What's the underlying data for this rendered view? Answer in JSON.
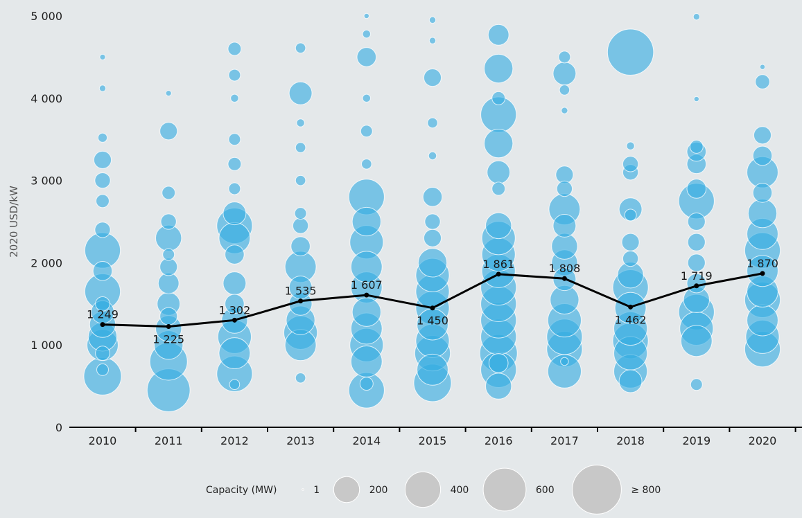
{
  "chart_data": {
    "type": "scatter",
    "subtype": "bubble-with-average-line",
    "ylabel": "2020 USD/kW",
    "xlabel": "",
    "ylim": [
      0,
      5000
    ],
    "yticks": [
      0,
      1000,
      2000,
      3000,
      4000,
      5000
    ],
    "ytick_labels": [
      "0",
      "1 000",
      "2 000",
      "3 000",
      "4 000",
      "5 000"
    ],
    "categories": [
      "2010",
      "2011",
      "2012",
      "2013",
      "2014",
      "2015",
      "2016",
      "2017",
      "2018",
      "2019",
      "2020"
    ],
    "average_series": {
      "values": [
        1249,
        1225,
        1302,
        1535,
        1607,
        1450,
        1861,
        1808,
        1462,
        1719,
        1870
      ],
      "labels": [
        "1 249",
        "1 225",
        "1 302",
        "1 535",
        "1 607",
        "1 450",
        "1 861",
        "1 808",
        "1 462",
        "1 719",
        "1 870"
      ],
      "color": "#000000"
    },
    "bubble_color": "#36ace2",
    "grid": false,
    "legend": {
      "title": "Capacity (MW)",
      "entries": [
        {
          "label": "1",
          "value": 1
        },
        {
          "label": "200",
          "value": 200
        },
        {
          "label": "400",
          "value": 400
        },
        {
          "label": "600",
          "value": 600
        },
        {
          "label": "≥ 800",
          "value": 800
        }
      ],
      "placement": "bottom",
      "color": "#c8c8c8"
    },
    "bubbles": [
      {
        "x": "2010",
        "y": 620,
        "c": 450
      },
      {
        "x": "2010",
        "y": 1000,
        "c": 300
      },
      {
        "x": "2010",
        "y": 1100,
        "c": 250
      },
      {
        "x": "2010",
        "y": 1250,
        "c": 200
      },
      {
        "x": "2010",
        "y": 1400,
        "c": 150
      },
      {
        "x": "2010",
        "y": 1650,
        "c": 400
      },
      {
        "x": "2010",
        "y": 1900,
        "c": 100
      },
      {
        "x": "2010",
        "y": 2150,
        "c": 400
      },
      {
        "x": "2010",
        "y": 2400,
        "c": 60
      },
      {
        "x": "2010",
        "y": 2750,
        "c": 40
      },
      {
        "x": "2010",
        "y": 3000,
        "c": 60
      },
      {
        "x": "2010",
        "y": 3250,
        "c": 80
      },
      {
        "x": "2010",
        "y": 3520,
        "c": 15
      },
      {
        "x": "2010",
        "y": 4120,
        "c": 5
      },
      {
        "x": "2010",
        "y": 4500,
        "c": 3
      },
      {
        "x": "2010",
        "y": 900,
        "c": 50
      },
      {
        "x": "2010",
        "y": 700,
        "c": 30
      },
      {
        "x": "2010",
        "y": 1500,
        "c": 50
      },
      {
        "x": "2011",
        "y": 450,
        "c": 600
      },
      {
        "x": "2011",
        "y": 800,
        "c": 450
      },
      {
        "x": "2011",
        "y": 1000,
        "c": 250
      },
      {
        "x": "2011",
        "y": 1200,
        "c": 200
      },
      {
        "x": "2011",
        "y": 1500,
        "c": 150
      },
      {
        "x": "2011",
        "y": 1750,
        "c": 120
      },
      {
        "x": "2011",
        "y": 1950,
        "c": 80
      },
      {
        "x": "2011",
        "y": 2300,
        "c": 200
      },
      {
        "x": "2011",
        "y": 2500,
        "c": 60
      },
      {
        "x": "2011",
        "y": 2850,
        "c": 40
      },
      {
        "x": "2011",
        "y": 3600,
        "c": 80
      },
      {
        "x": "2011",
        "y": 4060,
        "c": 3
      },
      {
        "x": "2011",
        "y": 1350,
        "c": 80
      },
      {
        "x": "2011",
        "y": 2100,
        "c": 30
      },
      {
        "x": "2012",
        "y": 650,
        "c": 400
      },
      {
        "x": "2012",
        "y": 900,
        "c": 300
      },
      {
        "x": "2012",
        "y": 1100,
        "c": 350
      },
      {
        "x": "2012",
        "y": 1300,
        "c": 200
      },
      {
        "x": "2012",
        "y": 1500,
        "c": 100
      },
      {
        "x": "2012",
        "y": 1750,
        "c": 150
      },
      {
        "x": "2012",
        "y": 2100,
        "c": 100
      },
      {
        "x": "2012",
        "y": 2300,
        "c": 300
      },
      {
        "x": "2012",
        "y": 2450,
        "c": 400
      },
      {
        "x": "2012",
        "y": 2600,
        "c": 150
      },
      {
        "x": "2012",
        "y": 2900,
        "c": 30
      },
      {
        "x": "2012",
        "y": 3200,
        "c": 40
      },
      {
        "x": "2012",
        "y": 3500,
        "c": 30
      },
      {
        "x": "2012",
        "y": 4000,
        "c": 10
      },
      {
        "x": "2012",
        "y": 4280,
        "c": 30
      },
      {
        "x": "2012",
        "y": 4600,
        "c": 40
      },
      {
        "x": "2012",
        "y": 520,
        "c": 20
      },
      {
        "x": "2013",
        "y": 600,
        "c": 20
      },
      {
        "x": "2013",
        "y": 1000,
        "c": 300
      },
      {
        "x": "2013",
        "y": 1150,
        "c": 350
      },
      {
        "x": "2013",
        "y": 1300,
        "c": 250
      },
      {
        "x": "2013",
        "y": 1500,
        "c": 150
      },
      {
        "x": "2013",
        "y": 1700,
        "c": 150
      },
      {
        "x": "2013",
        "y": 1950,
        "c": 300
      },
      {
        "x": "2013",
        "y": 2200,
        "c": 100
      },
      {
        "x": "2013",
        "y": 2450,
        "c": 60
      },
      {
        "x": "2013",
        "y": 2600,
        "c": 30
      },
      {
        "x": "2013",
        "y": 3000,
        "c": 20
      },
      {
        "x": "2013",
        "y": 3400,
        "c": 20
      },
      {
        "x": "2013",
        "y": 3700,
        "c": 10
      },
      {
        "x": "2013",
        "y": 4060,
        "c": 150
      },
      {
        "x": "2013",
        "y": 4610,
        "c": 20
      },
      {
        "x": "2014",
        "y": 450,
        "c": 400
      },
      {
        "x": "2014",
        "y": 800,
        "c": 300
      },
      {
        "x": "2014",
        "y": 1000,
        "c": 350
      },
      {
        "x": "2014",
        "y": 1200,
        "c": 300
      },
      {
        "x": "2014",
        "y": 1400,
        "c": 250
      },
      {
        "x": "2014",
        "y": 1700,
        "c": 300
      },
      {
        "x": "2014",
        "y": 1950,
        "c": 300
      },
      {
        "x": "2014",
        "y": 2250,
        "c": 350
      },
      {
        "x": "2014",
        "y": 2500,
        "c": 250
      },
      {
        "x": "2014",
        "y": 2800,
        "c": 400
      },
      {
        "x": "2014",
        "y": 3200,
        "c": 20
      },
      {
        "x": "2014",
        "y": 3600,
        "c": 30
      },
      {
        "x": "2014",
        "y": 4000,
        "c": 10
      },
      {
        "x": "2014",
        "y": 4500,
        "c": 100
      },
      {
        "x": "2014",
        "y": 4780,
        "c": 10
      },
      {
        "x": "2014",
        "y": 5000,
        "c": 2
      },
      {
        "x": "2014",
        "y": 530,
        "c": 40
      },
      {
        "x": "2015",
        "y": 540,
        "c": 450
      },
      {
        "x": "2015",
        "y": 700,
        "c": 300
      },
      {
        "x": "2015",
        "y": 900,
        "c": 400
      },
      {
        "x": "2015",
        "y": 1050,
        "c": 350
      },
      {
        "x": "2015",
        "y": 1250,
        "c": 300
      },
      {
        "x": "2015",
        "y": 1450,
        "c": 350
      },
      {
        "x": "2015",
        "y": 1650,
        "c": 350
      },
      {
        "x": "2015",
        "y": 1850,
        "c": 350
      },
      {
        "x": "2015",
        "y": 2000,
        "c": 250
      },
      {
        "x": "2015",
        "y": 2300,
        "c": 80
      },
      {
        "x": "2015",
        "y": 2500,
        "c": 60
      },
      {
        "x": "2015",
        "y": 2800,
        "c": 100
      },
      {
        "x": "2015",
        "y": 3300,
        "c": 10
      },
      {
        "x": "2015",
        "y": 3700,
        "c": 20
      },
      {
        "x": "2015",
        "y": 4250,
        "c": 80
      },
      {
        "x": "2015",
        "y": 4700,
        "c": 5
      },
      {
        "x": "2015",
        "y": 4950,
        "c": 5
      },
      {
        "x": "2016",
        "y": 500,
        "c": 200
      },
      {
        "x": "2016",
        "y": 700,
        "c": 400
      },
      {
        "x": "2016",
        "y": 900,
        "c": 450
      },
      {
        "x": "2016",
        "y": 1100,
        "c": 400
      },
      {
        "x": "2016",
        "y": 1300,
        "c": 400
      },
      {
        "x": "2016",
        "y": 1500,
        "c": 400
      },
      {
        "x": "2016",
        "y": 1700,
        "c": 400
      },
      {
        "x": "2016",
        "y": 1900,
        "c": 350
      },
      {
        "x": "2016",
        "y": 2100,
        "c": 350
      },
      {
        "x": "2016",
        "y": 2300,
        "c": 350
      },
      {
        "x": "2016",
        "y": 2450,
        "c": 200
      },
      {
        "x": "2016",
        "y": 2900,
        "c": 40
      },
      {
        "x": "2016",
        "y": 3100,
        "c": 150
      },
      {
        "x": "2016",
        "y": 3450,
        "c": 250
      },
      {
        "x": "2016",
        "y": 3800,
        "c": 400
      },
      {
        "x": "2016",
        "y": 4000,
        "c": 40
      },
      {
        "x": "2016",
        "y": 4360,
        "c": 250
      },
      {
        "x": "2016",
        "y": 4770,
        "c": 120
      },
      {
        "x": "2016",
        "y": 780,
        "c": 100
      },
      {
        "x": "2017",
        "y": 680,
        "c": 350
      },
      {
        "x": "2017",
        "y": 950,
        "c": 400
      },
      {
        "x": "2017",
        "y": 1100,
        "c": 400
      },
      {
        "x": "2017",
        "y": 1300,
        "c": 350
      },
      {
        "x": "2017",
        "y": 1550,
        "c": 250
      },
      {
        "x": "2017",
        "y": 1800,
        "c": 150
      },
      {
        "x": "2017",
        "y": 2000,
        "c": 200
      },
      {
        "x": "2017",
        "y": 2200,
        "c": 200
      },
      {
        "x": "2017",
        "y": 2450,
        "c": 150
      },
      {
        "x": "2017",
        "y": 2650,
        "c": 300
      },
      {
        "x": "2017",
        "y": 2900,
        "c": 60
      },
      {
        "x": "2017",
        "y": 3070,
        "c": 80
      },
      {
        "x": "2017",
        "y": 3850,
        "c": 5
      },
      {
        "x": "2017",
        "y": 4100,
        "c": 20
      },
      {
        "x": "2017",
        "y": 4300,
        "c": 150
      },
      {
        "x": "2017",
        "y": 4500,
        "c": 30
      },
      {
        "x": "2017",
        "y": 800,
        "c": 10
      },
      {
        "x": "2018",
        "y": 560,
        "c": 150
      },
      {
        "x": "2018",
        "y": 680,
        "c": 350
      },
      {
        "x": "2018",
        "y": 900,
        "c": 350
      },
      {
        "x": "2018",
        "y": 1050,
        "c": 400
      },
      {
        "x": "2018",
        "y": 1200,
        "c": 350
      },
      {
        "x": "2018",
        "y": 1450,
        "c": 300
      },
      {
        "x": "2018",
        "y": 1700,
        "c": 400
      },
      {
        "x": "2018",
        "y": 1850,
        "c": 200
      },
      {
        "x": "2018",
        "y": 2050,
        "c": 60
      },
      {
        "x": "2018",
        "y": 2250,
        "c": 80
      },
      {
        "x": "2018",
        "y": 2650,
        "c": 150
      },
      {
        "x": "2018",
        "y": 2580,
        "c": 30
      },
      {
        "x": "2018",
        "y": 3100,
        "c": 60
      },
      {
        "x": "2018",
        "y": 3200,
        "c": 60
      },
      {
        "x": "2018",
        "y": 3420,
        "c": 10
      },
      {
        "x": "2018",
        "y": 4560,
        "c": 700
      },
      {
        "x": "2019",
        "y": 520,
        "c": 30
      },
      {
        "x": "2019",
        "y": 1050,
        "c": 300
      },
      {
        "x": "2019",
        "y": 1200,
        "c": 350
      },
      {
        "x": "2019",
        "y": 1400,
        "c": 400
      },
      {
        "x": "2019",
        "y": 1550,
        "c": 200
      },
      {
        "x": "2019",
        "y": 1750,
        "c": 100
      },
      {
        "x": "2019",
        "y": 2000,
        "c": 80
      },
      {
        "x": "2019",
        "y": 2250,
        "c": 80
      },
      {
        "x": "2019",
        "y": 2500,
        "c": 80
      },
      {
        "x": "2019",
        "y": 2750,
        "c": 400
      },
      {
        "x": "2019",
        "y": 2900,
        "c": 100
      },
      {
        "x": "2019",
        "y": 3200,
        "c": 100
      },
      {
        "x": "2019",
        "y": 3350,
        "c": 100
      },
      {
        "x": "2019",
        "y": 3410,
        "c": 40
      },
      {
        "x": "2019",
        "y": 3990,
        "c": 2
      },
      {
        "x": "2019",
        "y": 4990,
        "c": 5
      },
      {
        "x": "2020",
        "y": 950,
        "c": 400
      },
      {
        "x": "2020",
        "y": 1100,
        "c": 350
      },
      {
        "x": "2020",
        "y": 1300,
        "c": 300
      },
      {
        "x": "2020",
        "y": 1550,
        "c": 400
      },
      {
        "x": "2020",
        "y": 1650,
        "c": 300
      },
      {
        "x": "2020",
        "y": 1900,
        "c": 300
      },
      {
        "x": "2020",
        "y": 2150,
        "c": 400
      },
      {
        "x": "2020",
        "y": 2350,
        "c": 300
      },
      {
        "x": "2020",
        "y": 2600,
        "c": 250
      },
      {
        "x": "2020",
        "y": 2850,
        "c": 100
      },
      {
        "x": "2020",
        "y": 3100,
        "c": 300
      },
      {
        "x": "2020",
        "y": 3300,
        "c": 100
      },
      {
        "x": "2020",
        "y": 3550,
        "c": 80
      },
      {
        "x": "2020",
        "y": 4200,
        "c": 50
      },
      {
        "x": "2020",
        "y": 4380,
        "c": 2
      }
    ]
  }
}
